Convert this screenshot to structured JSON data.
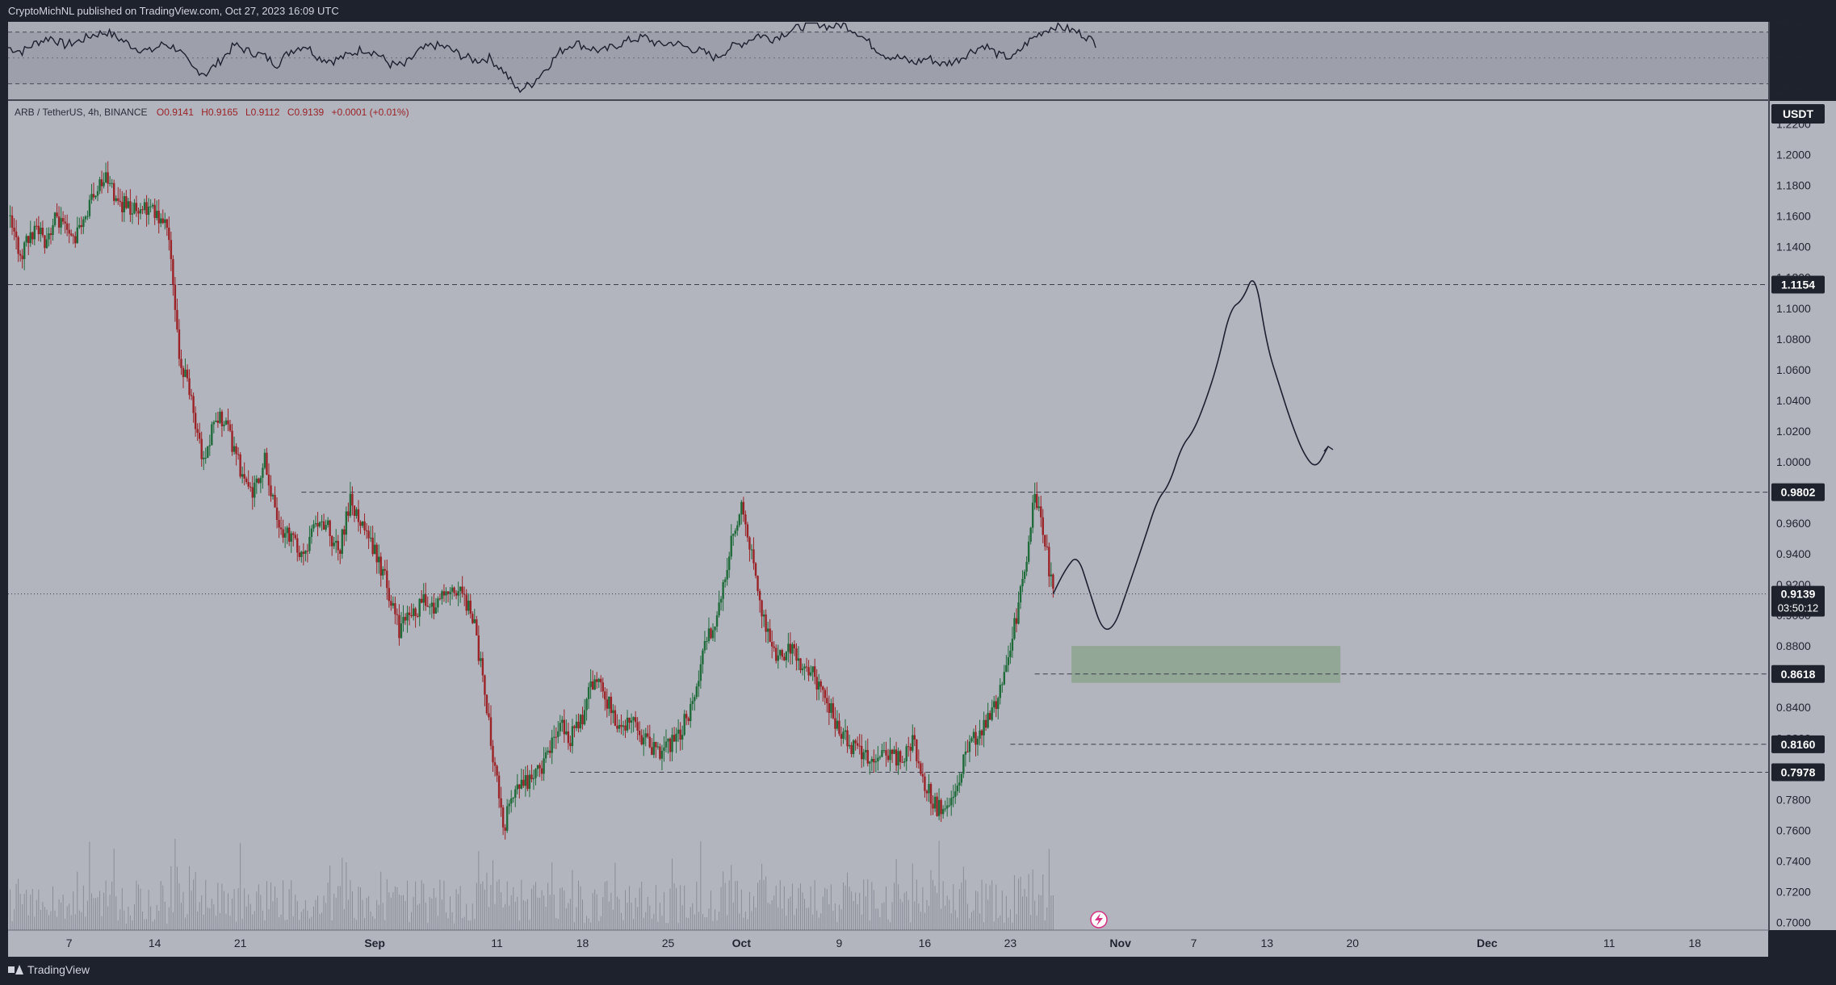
{
  "header": {
    "publisher_line": "CryptoMichNL published on TradingView.com, Oct 27, 2023 16:09 UTC"
  },
  "footer": {
    "brand": "TradingView"
  },
  "colors": {
    "background": "#b2b5be",
    "up_candle": "#1f6b3a",
    "down_candle": "#9b2226",
    "projection_line": "#1c2030",
    "target_zone": "#8da58f",
    "price_tag": "#1e222d"
  },
  "chart_data": [
    {
      "type": "line",
      "name": "oscillator",
      "ylim": [
        18,
        78
      ],
      "y_ticks": [
        "75.00",
        "50.00",
        "25.00"
      ],
      "reference_lines": [
        70,
        50,
        30
      ],
      "x": [
        0,
        5,
        10,
        15,
        20,
        25,
        30,
        35,
        40,
        45,
        50,
        55,
        60,
        65,
        70,
        75,
        80,
        85,
        90,
        95,
        100,
        105,
        110,
        115,
        120,
        125,
        130,
        135,
        140,
        145,
        150,
        155,
        160,
        165,
        170,
        175,
        180,
        185,
        190,
        195,
        200,
        205,
        210,
        215,
        220,
        225,
        230,
        235,
        240,
        245,
        250,
        255,
        260,
        265,
        270,
        275,
        280,
        285,
        290,
        295,
        300,
        305,
        310,
        315,
        320,
        325,
        330,
        335,
        340,
        345,
        350,
        355,
        360,
        365,
        370,
        375,
        380,
        385
      ],
      "values": [
        58,
        55,
        62,
        66,
        60,
        63,
        68,
        70,
        64,
        58,
        55,
        61,
        57,
        42,
        38,
        48,
        60,
        55,
        52,
        45,
        56,
        60,
        50,
        48,
        52,
        57,
        54,
        45,
        44,
        55,
        60,
        58,
        52,
        48,
        50,
        40,
        25,
        30,
        42,
        55,
        62,
        58,
        55,
        60,
        64,
        66,
        60,
        62,
        58,
        55,
        50,
        58,
        62,
        68,
        65,
        70,
        74,
        78,
        74,
        76,
        70,
        60,
        52,
        50,
        46,
        50,
        45,
        48,
        55,
        60,
        52,
        50,
        62,
        70,
        75,
        72,
        68,
        60
      ]
    },
    {
      "type": "candlestick",
      "title": "ARB / TetherUS, 4h, BINANCE",
      "legend": {
        "o": "O0.9141",
        "h": "H0.9165",
        "l": "L0.9112",
        "c": "C0.9139",
        "chg": "+0.0001 (+0.01%)"
      },
      "currency": "USDT",
      "ylim": [
        0.695,
        1.235
      ],
      "y_ticks": [
        "1.2200",
        "1.2000",
        "1.1800",
        "1.1600",
        "1.1400",
        "1.1200",
        "1.1000",
        "1.0800",
        "1.0600",
        "1.0400",
        "1.0200",
        "1.0000",
        "0.9800",
        "0.9600",
        "0.9400",
        "0.9200",
        "0.9000",
        "0.8800",
        "0.8600",
        "0.8400",
        "0.8200",
        "0.8000",
        "0.7800",
        "0.7600",
        "0.7400",
        "0.7200",
        "0.7000"
      ],
      "x_ticks": [
        {
          "label": "7",
          "day": 7
        },
        {
          "label": "14",
          "day": 14
        },
        {
          "label": "21",
          "day": 21
        },
        {
          "label": "Sep",
          "day": 32
        },
        {
          "label": "11",
          "day": 42
        },
        {
          "label": "18",
          "day": 49
        },
        {
          "label": "25",
          "day": 56
        },
        {
          "label": "Oct",
          "day": 62
        },
        {
          "label": "9",
          "day": 70
        },
        {
          "label": "16",
          "day": 77
        },
        {
          "label": "23",
          "day": 84
        },
        {
          "label": "Nov",
          "day": 93
        },
        {
          "label": "7",
          "day": 99
        },
        {
          "label": "13",
          "day": 105
        },
        {
          "label": "20",
          "day": 112
        },
        {
          "label": "Dec",
          "day": 123
        },
        {
          "label": "11",
          "day": 133
        },
        {
          "label": "18",
          "day": 140
        }
      ],
      "x_domain_days": [
        2,
        146
      ],
      "price_series_anchors": [
        [
          2,
          1.16
        ],
        [
          3,
          1.135
        ],
        [
          4,
          1.15
        ],
        [
          5,
          1.145
        ],
        [
          6,
          1.16
        ],
        [
          7,
          1.145
        ],
        [
          8,
          1.15
        ],
        [
          9,
          1.175
        ],
        [
          10,
          1.185
        ],
        [
          11,
          1.17
        ],
        [
          12,
          1.165
        ],
        [
          13,
          1.168
        ],
        [
          14,
          1.162
        ],
        [
          15,
          1.15
        ],
        [
          15.5,
          1.12
        ],
        [
          16,
          1.07
        ],
        [
          17,
          1.04
        ],
        [
          17.5,
          1.015
        ],
        [
          18,
          1.0
        ],
        [
          19,
          1.03
        ],
        [
          20,
          1.02
        ],
        [
          21,
          0.995
        ],
        [
          22,
          0.98
        ],
        [
          23,
          1.0
        ],
        [
          24,
          0.96
        ],
        [
          25,
          0.95
        ],
        [
          26,
          0.94
        ],
        [
          27,
          0.955
        ],
        [
          28,
          0.96
        ],
        [
          29,
          0.94
        ],
        [
          30,
          0.975
        ],
        [
          31,
          0.96
        ],
        [
          32,
          0.94
        ],
        [
          33,
          0.92
        ],
        [
          34,
          0.89
        ],
        [
          35,
          0.9
        ],
        [
          36,
          0.91
        ],
        [
          37,
          0.905
        ],
        [
          38,
          0.915
        ],
        [
          39,
          0.915
        ],
        [
          40,
          0.9
        ],
        [
          41,
          0.85
        ],
        [
          42,
          0.79
        ],
        [
          42.5,
          0.76
        ],
        [
          43,
          0.775
        ],
        [
          44,
          0.79
        ],
        [
          45,
          0.795
        ],
        [
          46,
          0.805
        ],
        [
          47,
          0.83
        ],
        [
          48,
          0.82
        ],
        [
          49,
          0.835
        ],
        [
          50,
          0.86
        ],
        [
          51,
          0.845
        ],
        [
          52,
          0.825
        ],
        [
          53,
          0.83
        ],
        [
          54,
          0.82
        ],
        [
          55,
          0.81
        ],
        [
          56,
          0.815
        ],
        [
          57,
          0.825
        ],
        [
          58,
          0.84
        ],
        [
          59,
          0.88
        ],
        [
          60,
          0.9
        ],
        [
          61,
          0.94
        ],
        [
          62,
          0.975
        ],
        [
          63,
          0.93
        ],
        [
          64,
          0.89
        ],
        [
          65,
          0.87
        ],
        [
          66,
          0.88
        ],
        [
          67,
          0.865
        ],
        [
          68,
          0.86
        ],
        [
          69,
          0.845
        ],
        [
          70,
          0.825
        ],
        [
          71,
          0.815
        ],
        [
          72,
          0.81
        ],
        [
          73,
          0.805
        ],
        [
          74,
          0.81
        ],
        [
          75,
          0.805
        ],
        [
          76,
          0.82
        ],
        [
          77,
          0.79
        ],
        [
          78,
          0.775
        ],
        [
          79,
          0.775
        ],
        [
          80,
          0.8
        ],
        [
          81,
          0.82
        ],
        [
          82,
          0.83
        ],
        [
          83,
          0.845
        ],
        [
          84,
          0.88
        ],
        [
          85,
          0.92
        ],
        [
          86,
          0.98
        ],
        [
          87,
          0.94
        ],
        [
          87.5,
          0.914
        ]
      ],
      "projection_path": [
        [
          87.5,
          0.914
        ],
        [
          88.5,
          0.93
        ],
        [
          89.5,
          0.94
        ],
        [
          90.5,
          0.915
        ],
        [
          91.5,
          0.89
        ],
        [
          92.5,
          0.892
        ],
        [
          93.5,
          0.915
        ],
        [
          95,
          0.95
        ],
        [
          96,
          0.975
        ],
        [
          97,
          0.985
        ],
        [
          98,
          1.01
        ],
        [
          99,
          1.02
        ],
        [
          100,
          1.04
        ],
        [
          101,
          1.065
        ],
        [
          102,
          1.1
        ],
        [
          103,
          1.105
        ],
        [
          104,
          1.125
        ],
        [
          105,
          1.075
        ],
        [
          106,
          1.05
        ],
        [
          107,
          1.025
        ],
        [
          108,
          1.005
        ],
        [
          109,
          0.995
        ],
        [
          110,
          1.01
        ]
      ],
      "target_zone": {
        "day_start": 89,
        "day_end": 111,
        "price_top": 0.88,
        "price_bottom": 0.856
      },
      "horizontal_levels": [
        {
          "price": 1.1154,
          "label": "1.1154",
          "day_start": 2
        },
        {
          "price": 0.9802,
          "label": "0.9802",
          "day_start": 26
        },
        {
          "price": 0.8618,
          "label": "0.8618",
          "day_start": 86
        },
        {
          "price": 0.816,
          "label": "0.8160",
          "day_start": 84
        },
        {
          "price": 0.7978,
          "label": "0.7978",
          "day_start": 48
        }
      ],
      "last_price": {
        "price": 0.9139,
        "label": "0.9139",
        "countdown": "03:50:12"
      },
      "volume_last_day": 87.5
    }
  ]
}
